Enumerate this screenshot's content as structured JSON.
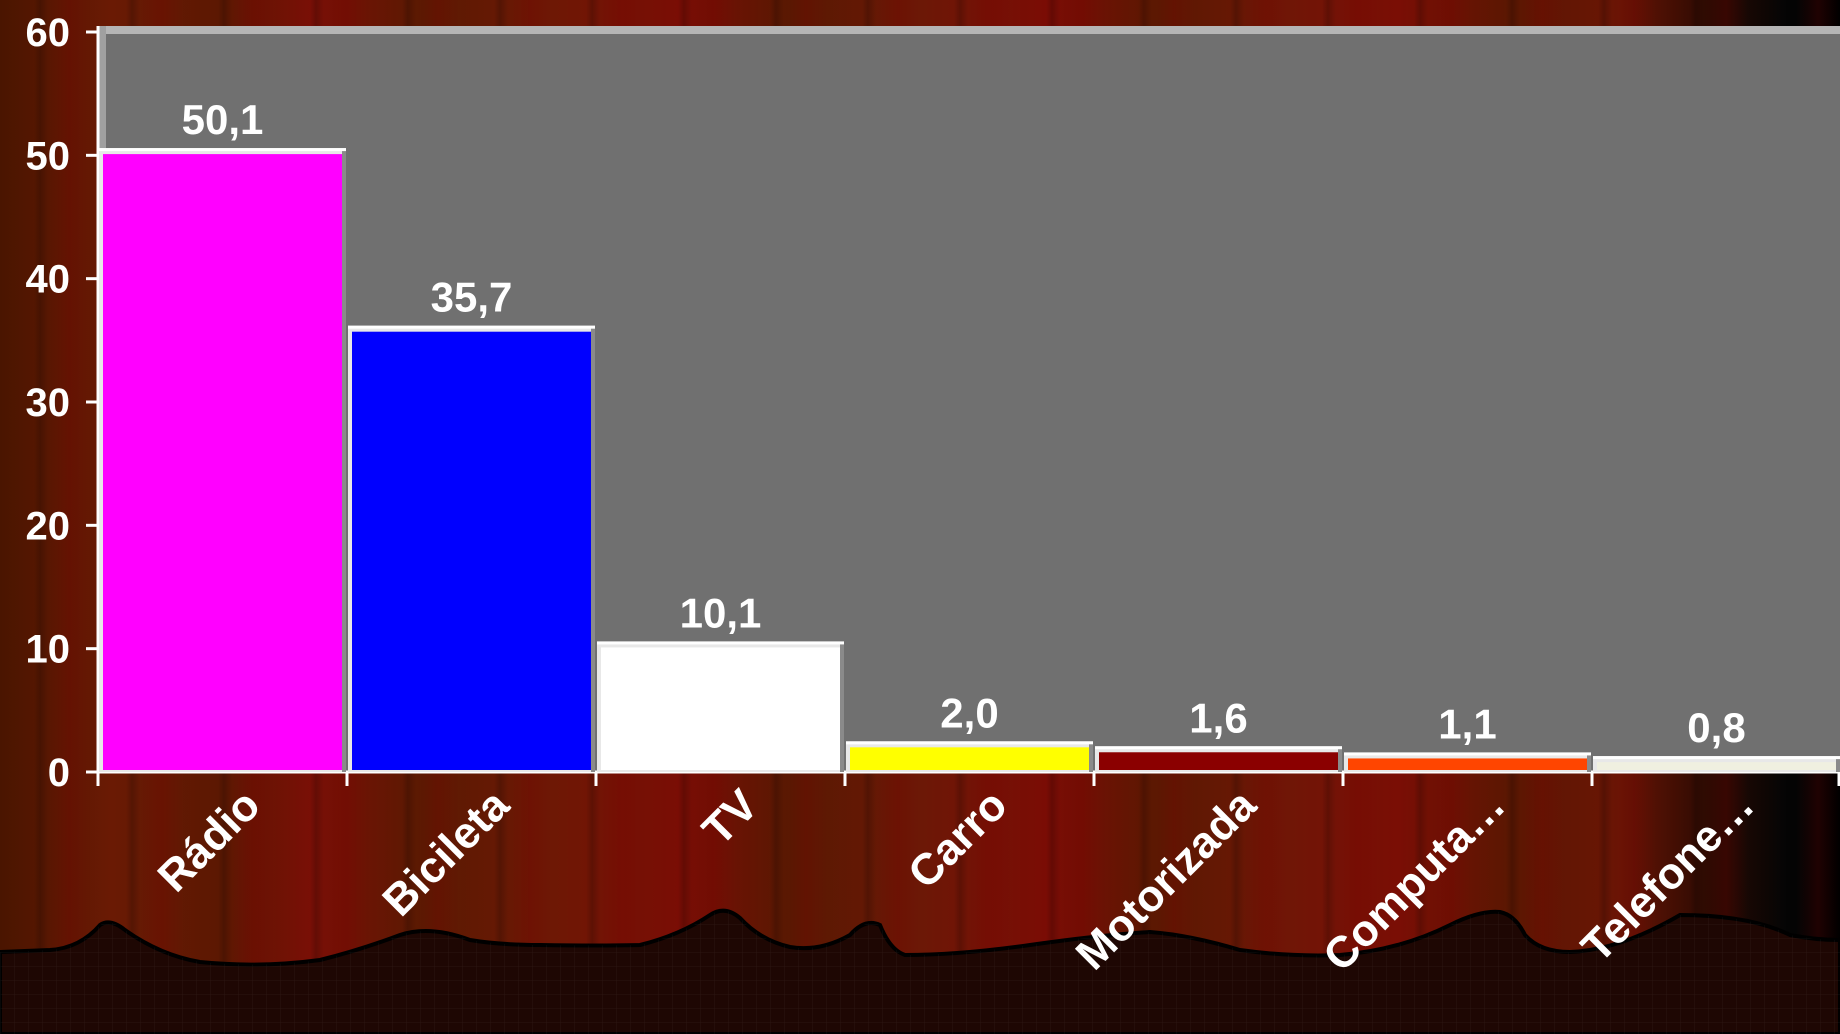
{
  "chart_data": {
    "type": "bar",
    "title": "",
    "xlabel": "",
    "ylabel": "",
    "ylim": [
      0,
      60
    ],
    "yticks": [
      "0",
      "10",
      "20",
      "30",
      "40",
      "50",
      "60"
    ],
    "grid": false,
    "legend": "none",
    "plot_background": "#707070",
    "categories": [
      "Rádio",
      "Bicileta",
      "TV",
      "Carro",
      "Motorizada",
      "Computa…",
      "Telefone…"
    ],
    "values": [
      50.1,
      35.7,
      10.1,
      2.0,
      1.6,
      1.1,
      0.8
    ],
    "data_labels": [
      "50,1",
      "35,7",
      "10,1",
      "2,0",
      "1,6",
      "1,1",
      "0,8"
    ],
    "bar_colors": [
      "#ff00ff",
      "#0000ff",
      "#ffffff",
      "#ffff00",
      "#8b0000",
      "#ff4500",
      "#f0f0e0"
    ]
  }
}
